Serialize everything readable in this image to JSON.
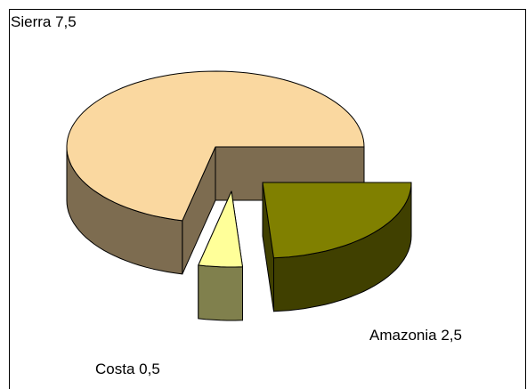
{
  "chart_data": {
    "type": "pie3d",
    "categories": [
      "Sierra",
      "Amazonia",
      "Costa"
    ],
    "values": [
      7.5,
      2.5,
      0.5
    ],
    "value_labels": [
      "7,5",
      "2,5",
      "0,5"
    ],
    "colors": [
      "#fad8a0",
      "#808000",
      "#ffff99"
    ]
  }
}
